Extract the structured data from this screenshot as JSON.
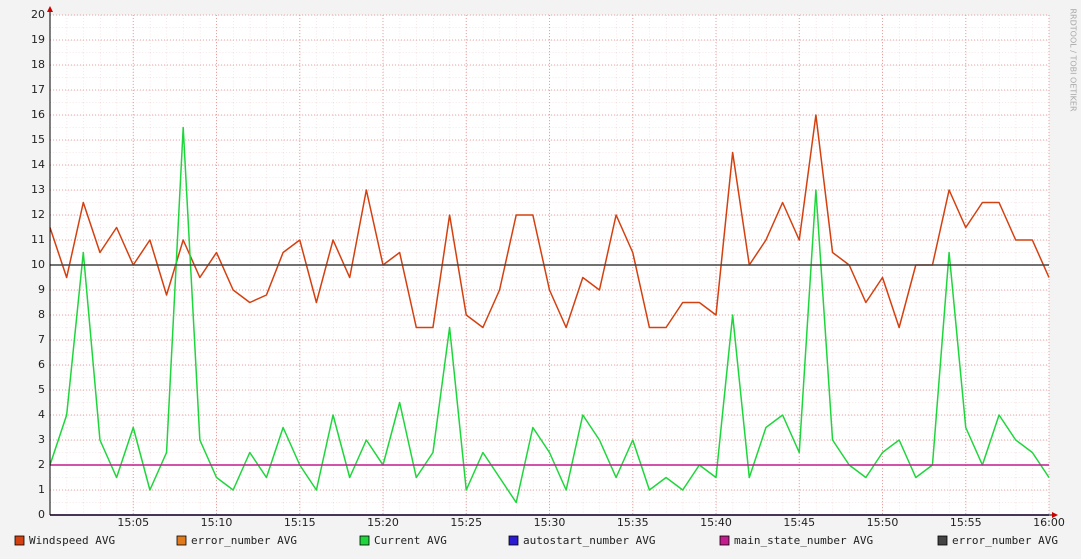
{
  "chart_data": {
    "type": "line",
    "watermark": "RRDTOOL / TOBI OETIKER",
    "xlim": [
      0,
      60
    ],
    "xticks": [
      {
        "value": 5,
        "label": "15:05"
      },
      {
        "value": 10,
        "label": "15:10"
      },
      {
        "value": 15,
        "label": "15:15"
      },
      {
        "value": 20,
        "label": "15:20"
      },
      {
        "value": 25,
        "label": "15:25"
      },
      {
        "value": 30,
        "label": "15:30"
      },
      {
        "value": 35,
        "label": "15:35"
      },
      {
        "value": 40,
        "label": "15:40"
      },
      {
        "value": 45,
        "label": "15:45"
      },
      {
        "value": 50,
        "label": "15:50"
      },
      {
        "value": 55,
        "label": "15:55"
      },
      {
        "value": 60,
        "label": "16:00"
      }
    ],
    "ylim": [
      0,
      20
    ],
    "yticks": [
      0,
      1,
      2,
      3,
      4,
      5,
      6,
      7,
      8,
      9,
      10,
      11,
      12,
      13,
      14,
      15,
      16,
      17,
      18,
      19,
      20
    ],
    "grid": true,
    "x": [
      0,
      1,
      2,
      3,
      4,
      5,
      6,
      7,
      8,
      9,
      10,
      11,
      12,
      13,
      14,
      15,
      16,
      17,
      18,
      19,
      20,
      21,
      22,
      23,
      24,
      25,
      26,
      27,
      28,
      29,
      30,
      31,
      32,
      33,
      34,
      35,
      36,
      37,
      38,
      39,
      40,
      41,
      42,
      43,
      44,
      45,
      46,
      47,
      48,
      49,
      50,
      51,
      52,
      53,
      54,
      55,
      56,
      57,
      58,
      59,
      60
    ],
    "series": [
      {
        "name": "Windspeed AVG",
        "color": "#d4400f",
        "values": [
          11.5,
          9.5,
          12.5,
          10.5,
          11.5,
          10,
          11,
          8.8,
          11,
          9.5,
          10.5,
          9,
          8.5,
          8.8,
          10.5,
          11,
          8.5,
          11,
          9.5,
          13,
          10,
          10.5,
          7.5,
          7.5,
          12,
          8,
          7.5,
          9,
          12,
          12,
          9,
          7.5,
          9.5,
          9,
          12,
          10.5,
          7.5,
          7.5,
          8.5,
          8.5,
          8,
          14.5,
          10,
          11,
          12.5,
          11,
          16,
          10.5,
          10,
          8.5,
          9.5,
          7.5,
          10,
          10,
          13,
          11.5,
          12.5,
          12.5,
          11,
          11,
          9.5
        ]
      },
      {
        "name": "error_number AVG",
        "color": "#e07a1a",
        "x": [
          0,
          60
        ],
        "values": [
          0,
          0
        ]
      },
      {
        "name": "Current AVG",
        "color": "#1ed63c",
        "values": [
          2,
          4,
          10.5,
          3,
          1.5,
          3.5,
          1,
          2.5,
          15.5,
          3,
          1.5,
          1,
          2.5,
          1.5,
          3.5,
          2,
          1,
          4,
          1.5,
          3,
          2,
          4.5,
          1.5,
          2.5,
          7.5,
          1,
          2.5,
          1.5,
          0.5,
          3.5,
          2.5,
          1,
          4,
          3,
          1.5,
          3,
          1,
          1.5,
          1,
          2,
          1.5,
          8,
          1.5,
          3.5,
          4,
          2.5,
          13,
          3,
          2,
          1.5,
          2.5,
          3,
          1.5,
          2,
          10.5,
          3.5,
          2,
          4,
          3,
          2.5,
          1.5
        ]
      },
      {
        "name": "autostart_number AVG",
        "color": "#2a1ad4",
        "x": [
          0,
          60
        ],
        "values": [
          0,
          0
        ]
      },
      {
        "name": "main_state_number AVG",
        "color": "#c41c8e",
        "x": [
          0,
          60
        ],
        "values": [
          2,
          2
        ]
      },
      {
        "name": "error_number AVG",
        "color": "#444444",
        "x": [
          0,
          60
        ],
        "values": [
          10,
          10
        ]
      }
    ]
  }
}
